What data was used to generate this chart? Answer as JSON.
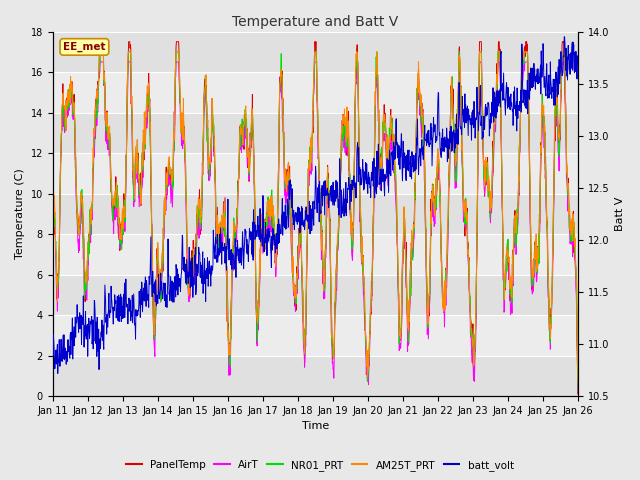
{
  "title": "Temperature and Batt V",
  "xlabel": "Time",
  "ylabel_left": "Temperature (C)",
  "ylabel_right": "Batt V",
  "ylim_left": [
    0,
    18
  ],
  "ylim_right": [
    10.5,
    14.0
  ],
  "yticks_left": [
    0,
    2,
    4,
    6,
    8,
    10,
    12,
    14,
    16,
    18
  ],
  "yticks_right": [
    10.5,
    11.0,
    11.5,
    12.0,
    12.5,
    13.0,
    13.5,
    14.0
  ],
  "xtick_labels": [
    "Jan 11",
    "Jan 12",
    "Jan 13",
    "Jan 14",
    "Jan 15",
    "Jan 16",
    "Jan 17",
    "Jan 18",
    "Jan 19",
    "Jan 20",
    "Jan 21",
    "Jan 22",
    "Jan 23",
    "Jan 24",
    "Jan 25",
    "Jan 26"
  ],
  "annotation_text": "EE_met",
  "colors": {
    "PanelTemp": "#dd0000",
    "AirT": "#ff00ff",
    "NR01_PRT": "#00dd00",
    "AM25T_PRT": "#ff8800",
    "batt_volt": "#0000cc"
  },
  "legend_labels": [
    "PanelTemp",
    "AirT",
    "NR01_PRT",
    "AM25T_PRT",
    "batt_volt"
  ],
  "background_color": "#e8e8e8",
  "plot_bg_color": "#f5f5f5",
  "band_color_light": "#e8e8e8",
  "band_color_dark": "#d8d8d8",
  "grid_color": "#ffffff",
  "n_points": 1440
}
